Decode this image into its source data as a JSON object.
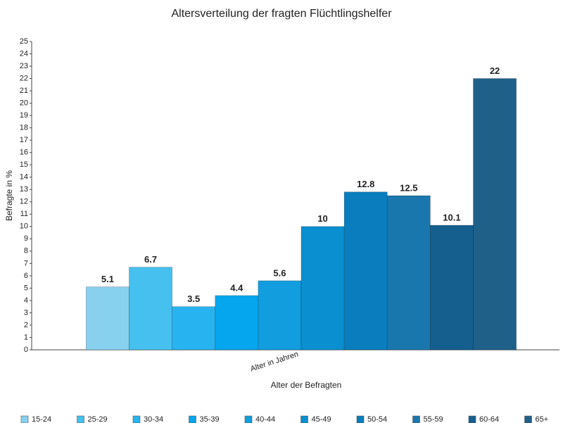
{
  "chart_data": {
    "type": "bar",
    "title": "Altersverteilung der fragten Flüchtlingshelfer",
    "x_label": "Alter der Befragten",
    "y_label": "Befragte in %",
    "categories": [
      "Alter in Jahren"
    ],
    "series": [
      {
        "name": "15-24",
        "color": "#87d1ef",
        "values": [
          5.1
        ]
      },
      {
        "name": "25-29",
        "color": "#45c0ef",
        "values": [
          6.7
        ]
      },
      {
        "name": "30-34",
        "color": "#27b3f0",
        "values": [
          3.5
        ]
      },
      {
        "name": "35-39",
        "color": "#06a6ee",
        "values": [
          4.4
        ]
      },
      {
        "name": "40-44",
        "color": "#129ddf",
        "values": [
          5.6
        ]
      },
      {
        "name": "45-49",
        "color": "#0a8fd0",
        "values": [
          10
        ]
      },
      {
        "name": "50-54",
        "color": "#097dbd",
        "values": [
          12.8
        ]
      },
      {
        "name": "55-59",
        "color": "#1a77ad",
        "values": [
          12.5
        ]
      },
      {
        "name": "60-64",
        "color": "#145f8e",
        "values": [
          10.1
        ]
      },
      {
        "name": "65+",
        "color": "#1f6089",
        "values": [
          22
        ]
      }
    ],
    "ylim": [
      0,
      25
    ],
    "yticks": [
      0,
      1,
      2,
      3,
      4,
      5,
      6,
      7,
      8,
      9,
      10,
      11,
      12,
      13,
      14,
      15,
      16,
      17,
      18,
      19,
      20,
      21,
      22,
      23,
      24,
      25
    ],
    "grid": false,
    "legend": "bottom"
  }
}
